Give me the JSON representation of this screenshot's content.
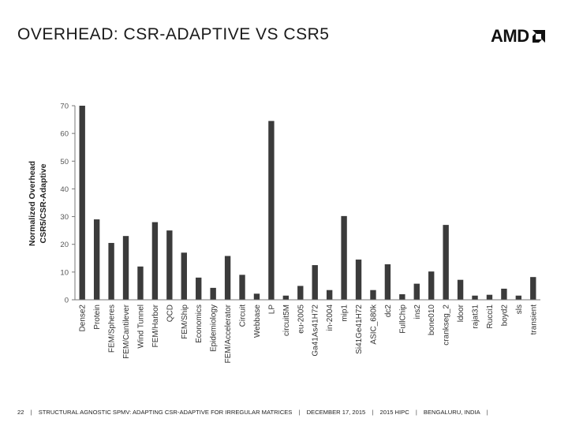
{
  "slide": {
    "title": "OVERHEAD: CSR-ADAPTIVE VS CSR5",
    "logo_text": "AMD",
    "footer": {
      "page_number": "22",
      "sep": "|",
      "talk_title": "STRUCTURAL AGNOSTIC SPMV: ADAPTING CSR-ADAPTIVE FOR IRREGULAR MATRICES",
      "date": "DECEMBER 17, 2015",
      "conference": "2015 HIPC",
      "location": "BENGALURU, INDIA"
    }
  },
  "colors": {
    "bar": "#3b3b3b",
    "axis": "#777777",
    "text": "#222222"
  },
  "chart_data": {
    "type": "bar",
    "ylabel_line1": "Normalized Overhead",
    "ylabel_line2": "CSR5/CSR-Adaptive",
    "ylim": [
      0,
      70
    ],
    "yticks": [
      0,
      10,
      20,
      30,
      40,
      50,
      60,
      70
    ],
    "categories": [
      "Dense2",
      "Protein",
      "FEM/Spheres",
      "FEM/Cantilever",
      "Wind Tunnel",
      "FEM/Harbor",
      "QCD",
      "FEM/Ship",
      "Economics",
      "Epidemiology",
      "FEM/Accelerator",
      "Circuit",
      "Webbase",
      "LP",
      "circuit5M",
      "eu-2005",
      "Ga41As41H72",
      "in-2004",
      "mip1",
      "Si41Ge41H72",
      "ASIC_680k",
      "dc2",
      "FullChip",
      "ins2",
      "bone010",
      "crankseg_2",
      "ldoor",
      "rajat31",
      "Rucci1",
      "boyd2",
      "sls",
      "transient"
    ],
    "values": [
      70,
      29,
      20.5,
      23,
      12,
      28,
      25,
      17,
      8,
      4.3,
      15.8,
      9,
      2.2,
      64.5,
      1.5,
      5,
      12.5,
      3.5,
      30.2,
      14.5,
      3.5,
      12.8,
      2,
      5.8,
      10.2,
      27,
      7.2,
      1.5,
      1.8,
      4,
      1.5,
      8.2
    ]
  }
}
